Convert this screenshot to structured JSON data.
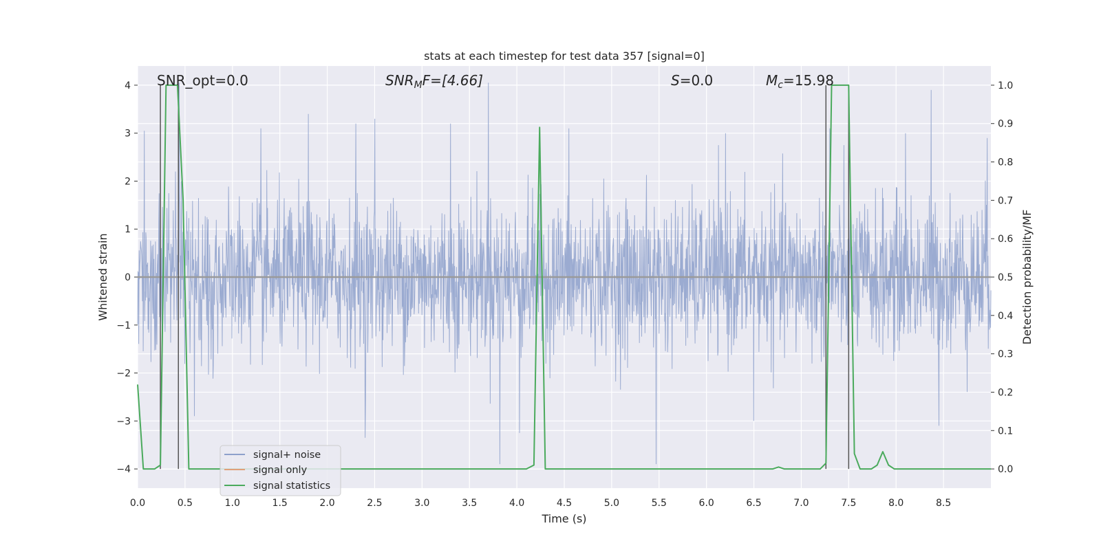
{
  "chart_data": {
    "type": "line",
    "title": "stats at each timestep for test data 357 [signal=0]",
    "xlabel": "Time (s)",
    "ylabel": "Whitened strain",
    "y2label": "Detection probability/MF",
    "xlim": [
      0,
      9.0
    ],
    "ylim": [
      -4.4,
      4.4
    ],
    "y2lim": [
      -0.05,
      1.05
    ],
    "grid": true,
    "legend_position": "lower-left",
    "x_ticks": [
      "0.0",
      "0.5",
      "1.0",
      "1.5",
      "2.0",
      "2.5",
      "3.0",
      "3.5",
      "4.0",
      "4.5",
      "5.0",
      "5.5",
      "6.0",
      "6.5",
      "7.0",
      "7.5",
      "8.0",
      "8.5"
    ],
    "y_ticks": [
      "4",
      "3",
      "2",
      "1",
      "0",
      "−1",
      "−2",
      "−3",
      "−4"
    ],
    "y2_ticks": [
      "1.0",
      "0.9",
      "0.8",
      "0.7",
      "0.6",
      "0.5",
      "0.4",
      "0.3",
      "0.2",
      "0.1",
      "0.0"
    ],
    "annotations": {
      "snr_opt": "SNR_opt=0.0",
      "snr_mf_base": "SNR",
      "snr_mf_sub": "M",
      "snr_mf_rest": "F=[4.66]",
      "s_base": "S",
      "s_rest": "=0.0",
      "mc_base": "M",
      "mc_sub": "c",
      "mc_rest": "=15.98"
    },
    "vertical_lines_x": [
      0.24,
      0.43,
      7.26,
      7.5
    ],
    "series": [
      {
        "name": "signal+ noise",
        "color": "#8da0cb",
        "axis": "left",
        "noise_std": 0.78,
        "peaks": [
          {
            "x": 0.07,
            "y": 3.05
          },
          {
            "x": 0.4,
            "y": 2.2
          },
          {
            "x": 0.44,
            "y": 4.05
          },
          {
            "x": 0.6,
            "y": -2.9
          },
          {
            "x": 1.3,
            "y": 3.1
          },
          {
            "x": 1.8,
            "y": 3.4
          },
          {
            "x": 2.3,
            "y": 3.2
          },
          {
            "x": 2.4,
            "y": -3.35
          },
          {
            "x": 2.5,
            "y": 3.3
          },
          {
            "x": 3.3,
            "y": 3.2
          },
          {
            "x": 3.7,
            "y": 4.05
          },
          {
            "x": 3.82,
            "y": -3.9
          },
          {
            "x": 4.03,
            "y": -3.25
          },
          {
            "x": 4.55,
            "y": 3.1
          },
          {
            "x": 5.47,
            "y": -3.9
          },
          {
            "x": 6.2,
            "y": 3.0
          },
          {
            "x": 6.5,
            "y": -3.0
          },
          {
            "x": 7.3,
            "y": 3.1
          },
          {
            "x": 8.1,
            "y": 3.0
          },
          {
            "x": 8.37,
            "y": 3.9
          },
          {
            "x": 8.45,
            "y": -3.1
          },
          {
            "x": 8.96,
            "y": 2.9
          }
        ]
      },
      {
        "name": "signal only",
        "color": "#e0a07a",
        "axis": "left",
        "x": [
          0.0,
          9.0
        ],
        "y": [
          0.0,
          0.0
        ]
      },
      {
        "name": "signal statistics",
        "color": "#4aaa5c",
        "axis": "right",
        "x": [
          0.0,
          0.06,
          0.12,
          0.18,
          0.24,
          0.3,
          0.36,
          0.42,
          0.48,
          0.54,
          0.6,
          2.3,
          4.1,
          4.18,
          4.24,
          4.3,
          4.36,
          6.1,
          6.7,
          6.76,
          6.82,
          7.2,
          7.26,
          7.32,
          7.38,
          7.5,
          7.56,
          7.62,
          7.68,
          7.74,
          7.8,
          7.86,
          7.92,
          7.98,
          8.04,
          9.0
        ],
        "y": [
          0.22,
          0.0,
          0.0,
          0.0,
          0.01,
          1.0,
          1.0,
          1.0,
          0.7,
          0.0,
          0.0,
          0.0,
          0.0,
          0.01,
          0.89,
          0.0,
          0.0,
          0.0,
          0.0,
          0.005,
          0.0,
          0.0,
          0.015,
          1.0,
          1.0,
          1.0,
          0.04,
          0.0,
          0.0,
          0.0,
          0.01,
          0.045,
          0.01,
          0.0,
          0.0,
          0.0
        ]
      }
    ]
  }
}
